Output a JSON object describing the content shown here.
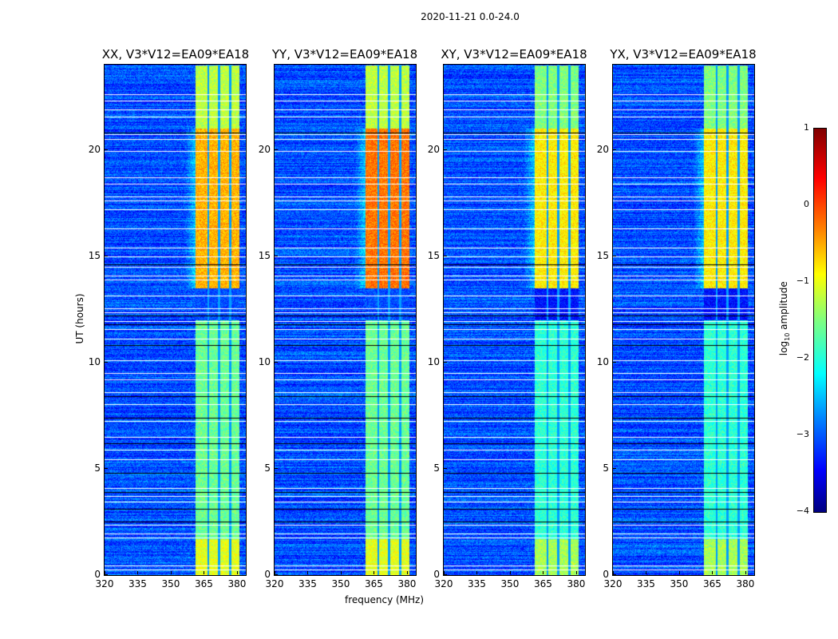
{
  "chart_data": {
    "type": "heatmap",
    "title": "2020-11-21 0.0-24.0",
    "xlabel": "frequency (MHz)",
    "ylabel": "UT (hours)",
    "xlim": [
      320,
      384
    ],
    "ylim": [
      0,
      24
    ],
    "xticks": [
      "320",
      "335",
      "350",
      "365",
      "380"
    ],
    "xtick_values": [
      320,
      335,
      350,
      365,
      380
    ],
    "yticks": [
      "0",
      "5",
      "10",
      "15",
      "20"
    ],
    "ytick_values": [
      0,
      5,
      10,
      15,
      20
    ],
    "panels": [
      {
        "title": "XX, V3*V12=EA09*EA18"
      },
      {
        "title": "YY, V3*V12=EA09*EA18"
      },
      {
        "title": "XY, V3*V12=EA09*EA18"
      },
      {
        "title": "YX, V3*V12=EA09*EA18"
      }
    ],
    "rfi_band_mhz": [
      361,
      381
    ],
    "band_gaps_mhz": [
      366.8,
      371.8,
      376.8
    ],
    "background_log_amplitude": -3.0,
    "band_log_amplitude_segments": [
      {
        "t": [
          0,
          1.7
        ],
        "value": -1.0
      },
      {
        "t": [
          1.7,
          12.0
        ],
        "value": -1.6
      },
      {
        "t": [
          13.5,
          21.0
        ],
        "value": -0.5
      },
      {
        "t": [
          21.0,
          24.0
        ],
        "value": -1.2
      }
    ],
    "flagged_times_hours": [
      0.25,
      0.45,
      1.75,
      1.95,
      2.35,
      3.45,
      3.7,
      4.1,
      5.45,
      5.9,
      6.5,
      7.25,
      8.05,
      8.6,
      9.2,
      9.5,
      10.1,
      11.1,
      11.55,
      11.95,
      12.35,
      12.55,
      13.15,
      13.9,
      14.1,
      14.5,
      15.0,
      15.4,
      16.3,
      17.2,
      17.6,
      17.8,
      18.4,
      18.7,
      19.95,
      20.5,
      20.75,
      21.55,
      21.9,
      22.3,
      22.6
    ],
    "dark_times_hours": [
      2.5,
      3.1,
      3.9,
      4.8,
      6.2,
      7.4,
      8.4,
      10.8,
      11.8,
      12.2,
      14.6,
      20.8
    ],
    "colorbar": {
      "label": "log10 amplitude",
      "label_base": "log",
      "label_sub": "10",
      "label_rest": " amplitude",
      "range": [
        -4,
        1
      ],
      "ticks": [
        "1",
        "0",
        "−1",
        "−2",
        "−3",
        "−4"
      ],
      "tick_values": [
        1,
        0,
        -1,
        -2,
        -3,
        -4
      ],
      "colormap": "jet"
    }
  }
}
